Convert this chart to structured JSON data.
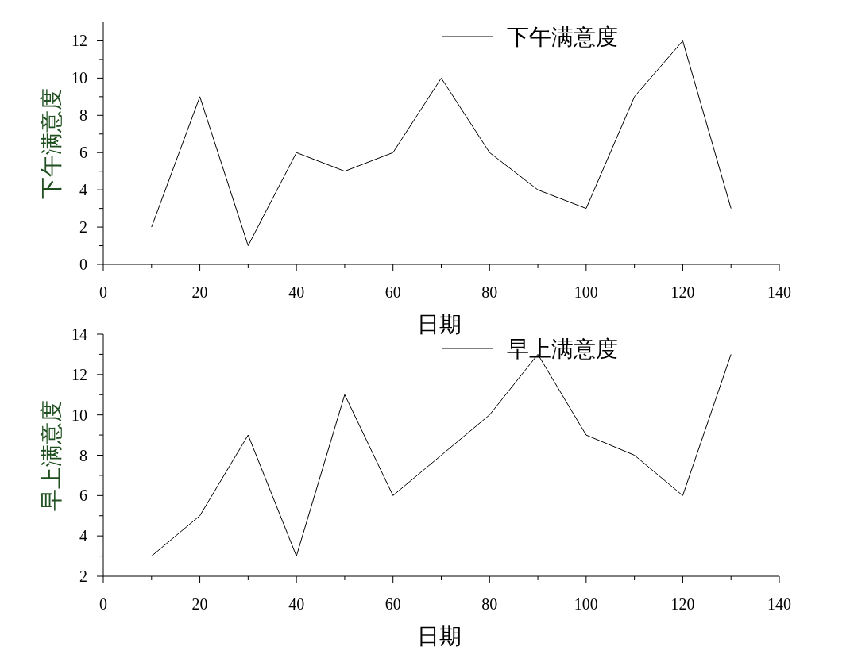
{
  "chart_data": [
    {
      "type": "line",
      "xlabel": "日期",
      "ylabel": "下午满意度",
      "x": [
        10,
        20,
        30,
        40,
        50,
        60,
        70,
        80,
        90,
        100,
        110,
        120,
        130
      ],
      "series": [
        {
          "name": "下午满意度",
          "color": "#000000",
          "values": [
            2,
            9,
            1,
            6,
            5,
            6,
            10,
            6,
            4,
            3,
            9,
            12,
            3
          ]
        }
      ],
      "xlim": [
        0,
        140
      ],
      "xticks": [
        0,
        {
          "value": 10,
          "label": null
        },
        20,
        {
          "value": 30,
          "label": null
        },
        40,
        {
          "value": 50,
          "label": null
        },
        60,
        {
          "value": 70,
          "label": null
        },
        80,
        {
          "value": 90,
          "label": null
        },
        100,
        {
          "value": 110,
          "label": null
        },
        120,
        {
          "value": 130,
          "label": null
        },
        140
      ],
      "ylim": [
        0,
        13
      ],
      "yticks": [
        0,
        {
          "value": 1,
          "label": null
        },
        2,
        {
          "value": 3,
          "label": null
        },
        4,
        {
          "value": 5,
          "label": null
        },
        6,
        {
          "value": 7,
          "label": null
        },
        8,
        {
          "value": 9,
          "label": null
        },
        10,
        {
          "value": 11,
          "label": null
        },
        12
      ],
      "grid": false,
      "legend": "top right",
      "marker": "none",
      "line_style": "solid"
    },
    {
      "type": "line",
      "xlabel": "日期",
      "ylabel": "早上满意度",
      "x": [
        10,
        20,
        30,
        40,
        50,
        60,
        70,
        80,
        90,
        100,
        110,
        120,
        130
      ],
      "series": [
        {
          "name": "早上满意度",
          "color": "#000000",
          "values": [
            3,
            5,
            9,
            3,
            11,
            6,
            8,
            10,
            13,
            9,
            8,
            6,
            13
          ]
        }
      ],
      "xlim": [
        0,
        140
      ],
      "xticks": [
        0,
        {
          "value": 10,
          "label": null
        },
        20,
        {
          "value": 30,
          "label": null
        },
        40,
        {
          "value": 50,
          "label": null
        },
        60,
        {
          "value": 70,
          "label": null
        },
        80,
        {
          "value": 90,
          "label": null
        },
        100,
        {
          "value": 110,
          "label": null
        },
        120,
        {
          "value": 130,
          "label": null
        },
        140
      ],
      "ylim": [
        2,
        14
      ],
      "yticks": [
        2,
        {
          "value": 3,
          "label": null
        },
        4,
        {
          "value": 5,
          "label": null
        },
        6,
        {
          "value": 7,
          "label": null
        },
        8,
        {
          "value": 9,
          "label": null
        },
        10,
        {
          "value": 11,
          "label": null
        },
        12,
        {
          "value": 13,
          "label": null
        },
        14
      ],
      "grid": false,
      "legend": "top right",
      "marker": "none",
      "line_style": "solid"
    }
  ]
}
